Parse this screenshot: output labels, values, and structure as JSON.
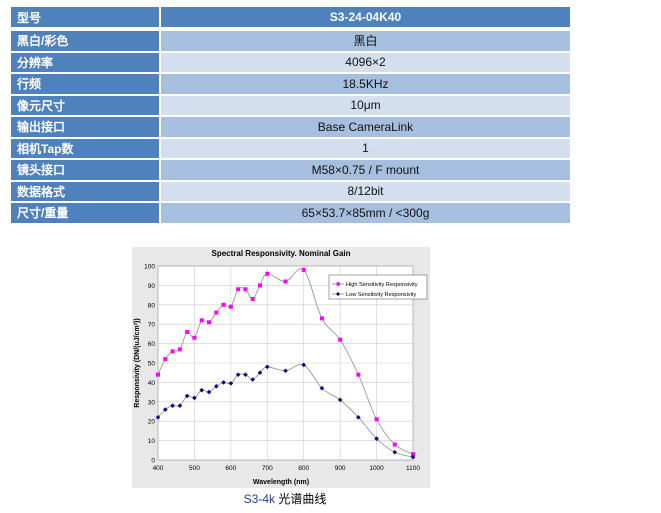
{
  "specs": {
    "header": {
      "label": "型号",
      "value": "S3-24-04K40"
    },
    "rows": [
      {
        "label": "黑白/彩色",
        "value": "黑白"
      },
      {
        "label": "分辨率",
        "value": "4096×2"
      },
      {
        "label": "行频",
        "value": "18.5KHz"
      },
      {
        "label": "像元尺寸",
        "value": "10μm"
      },
      {
        "label": "输出接口",
        "value": "Base CameraLink"
      },
      {
        "label": "相机Tap数",
        "value": "1"
      },
      {
        "label": "镜头接口",
        "value": "M58×0.75 / F mount"
      },
      {
        "label": "数据格式",
        "value": "8/12bit"
      },
      {
        "label": "尺寸/重量",
        "value": "65×53.7×85mm / <300g"
      }
    ]
  },
  "caption": {
    "model": "S3-4k",
    "text": " 光谱曲线"
  },
  "chart_data": {
    "type": "line",
    "title": "Spectral Responsivity. Nominal Gain",
    "xlabel": "Wavelength (nm)",
    "ylabel": "Responsivity (DN/(uJ/cm²))",
    "xlim": [
      400,
      1100
    ],
    "ylim": [
      0,
      100
    ],
    "xticks": [
      400,
      500,
      600,
      700,
      800,
      900,
      1000,
      1100
    ],
    "yticks": [
      0,
      10,
      20,
      30,
      40,
      50,
      60,
      70,
      80,
      90,
      100
    ],
    "grid": true,
    "legend_position": "top-right",
    "x": [
      400,
      420,
      440,
      460,
      480,
      500,
      520,
      540,
      560,
      580,
      600,
      620,
      640,
      660,
      680,
      700,
      750,
      800,
      850,
      900,
      950,
      1000,
      1050,
      1100
    ],
    "series": [
      {
        "name": "High Sensitivity Responsivity",
        "color": "#ff00ff",
        "values": [
          44,
          52,
          56,
          57,
          66,
          63,
          72,
          71,
          76,
          80,
          79,
          88,
          88,
          83,
          90,
          96,
          92,
          98,
          73,
          62,
          44,
          21,
          8,
          3
        ]
      },
      {
        "name": "Low Sensitivity Responsivity",
        "color": "#000080",
        "values": [
          22,
          26,
          28,
          28,
          33,
          32,
          36,
          35,
          38,
          40,
          39.5,
          44,
          44,
          41.5,
          45,
          48,
          46,
          49,
          37,
          31,
          22,
          11,
          4,
          1.5
        ]
      }
    ]
  }
}
